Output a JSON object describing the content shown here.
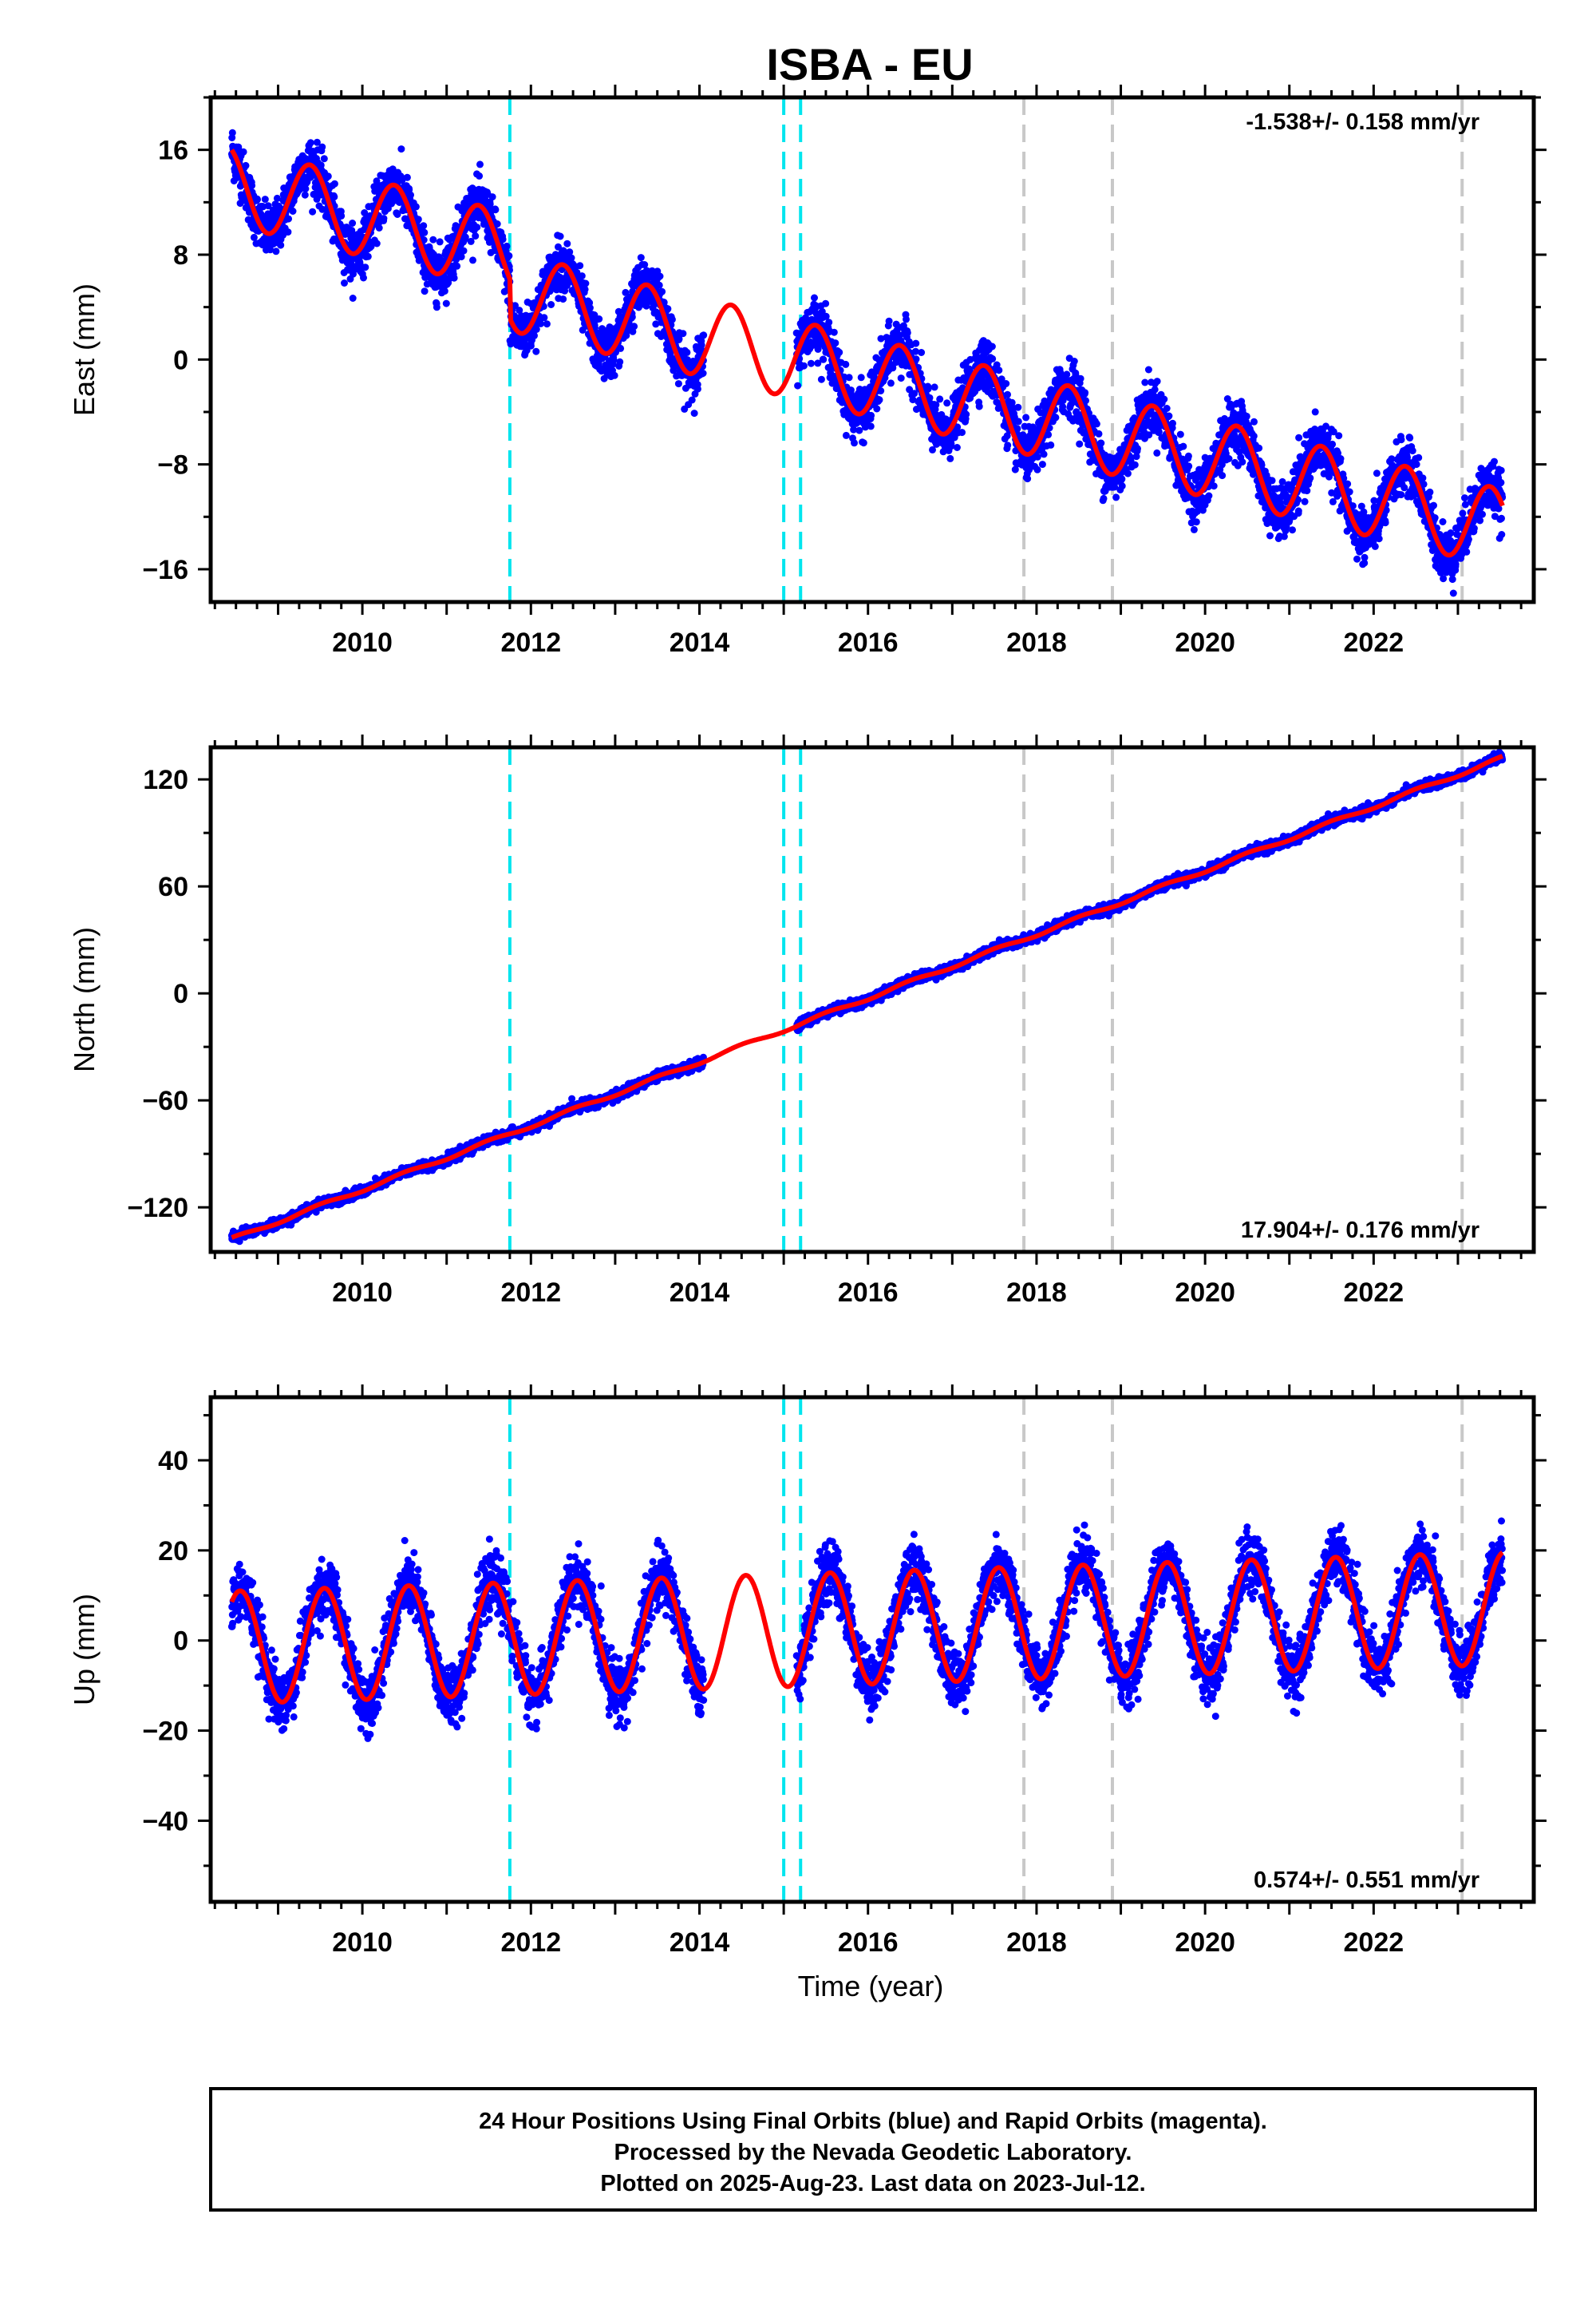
{
  "chart_data": {
    "type": "scatter",
    "title": "ISBA - EU",
    "xlabel": "Time (year)",
    "xlim": [
      2008.2,
      2023.9
    ],
    "x_ticks": [
      2010,
      2012,
      2014,
      2016,
      2018,
      2020,
      2022
    ],
    "x_tick_labels": [
      "2010",
      "2012",
      "2014",
      "2016",
      "2018",
      "2020",
      "2022"
    ],
    "grid": false,
    "vertical_lines": [
      {
        "x": 2011.75,
        "color": "#00e5ee",
        "style": "dashed"
      },
      {
        "x": 2015.0,
        "color": "#00e5ee",
        "style": "dashed"
      },
      {
        "x": 2015.2,
        "color": "#00e5ee",
        "style": "dashed"
      },
      {
        "x": 2017.85,
        "color": "#c8c8c8",
        "style": "dashed"
      },
      {
        "x": 2018.9,
        "color": "#c8c8c8",
        "style": "dashed"
      },
      {
        "x": 2023.05,
        "color": "#c8c8c8",
        "style": "dashed"
      }
    ],
    "colors": {
      "observations": "#0000ff",
      "model": "#ff0000"
    },
    "panels": [
      {
        "id": "east",
        "ylabel": "East (mm)",
        "ylim": [
          -18.5,
          20
        ],
        "y_ticks": [
          -16,
          -8,
          0,
          8,
          16
        ],
        "y_tick_labels": [
          "−16",
          "−8",
          "0",
          "8",
          "16"
        ],
        "rate": "-1.538+/- 0.158 mm/yr",
        "rate_position": "top-right",
        "trend": {
          "rate": -1.538,
          "value_2008_5": 13.2
        },
        "seasonal": {
          "amplitude": 3.0,
          "phase_year": 0.38
        },
        "noise": 1.0,
        "offsets": [
          {
            "x": 2011.75,
            "dy": -3.0
          }
        ]
      },
      {
        "id": "north",
        "ylabel": "North (mm)",
        "ylim": [
          -145,
          138
        ],
        "y_ticks": [
          -120,
          -60,
          0,
          60,
          120
        ],
        "y_tick_labels": [
          "−120",
          "−60",
          "0",
          "60",
          "120"
        ],
        "rate": "17.904+/- 0.176 mm/yr",
        "rate_position": "bottom-right",
        "trend": {
          "rate": 17.904,
          "value_2008_5": -137
        },
        "seasonal": {
          "amplitude": 1.0,
          "phase_year": 0.5
        },
        "noise": 1.3,
        "offsets": []
      },
      {
        "id": "up",
        "ylabel": "Up (mm)",
        "ylim": [
          -58,
          54
        ],
        "y_ticks": [
          -40,
          -20,
          0,
          20,
          40
        ],
        "y_tick_labels": [
          "−40",
          "−20",
          "0",
          "20",
          "40"
        ],
        "rate": "0.574+/- 0.551 mm/yr",
        "rate_position": "bottom-right",
        "trend": {
          "rate": 0.574,
          "value_2008_5": -1.5
        },
        "seasonal": {
          "amplitude": 12.5,
          "phase_year": 0.55
        },
        "noise": 3.2,
        "offsets": []
      }
    ],
    "data_gaps": [
      [
        2014.05,
        2015.15
      ]
    ],
    "data_range": [
      2008.45,
      2023.53
    ]
  },
  "caption": {
    "line1": "24 Hour Positions Using Final Orbits (blue) and Rapid Orbits (magenta).",
    "line2": "Processed by the Nevada Geodetic Laboratory.",
    "line3": "Plotted on 2025-Aug-23. Last data on 2023-Jul-12."
  }
}
